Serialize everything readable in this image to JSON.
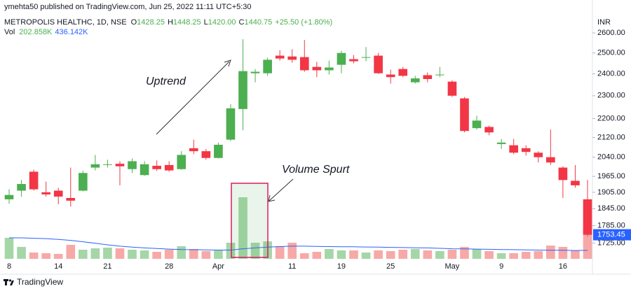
{
  "chart_data": {
    "type": "candlestick",
    "published": "ymehta50 published on TradingView.com, Jun 25, 2022 11:11 UTC+5:30",
    "symbol": "METROPOLIS HEALTHC, 1D, NSE",
    "ohlc_legend": [
      {
        "key": "O",
        "text": "1428.25"
      },
      {
        "key": "H",
        "text": "1448.25"
      },
      {
        "key": "L",
        "text": "1420.00"
      },
      {
        "key": "C",
        "text": "1440.75"
      }
    ],
    "change": "+25.50 (+1.80%)",
    "volume_label": "Vol",
    "volume_legend": [
      "202.858K",
      "436.142K"
    ],
    "currency": "INR",
    "brand": "TradingView",
    "annotations": [
      "Uptrend",
      "Volume Spurt"
    ],
    "categories": [
      "8",
      null,
      null,
      null,
      "14",
      null,
      null,
      null,
      "21",
      null,
      null,
      null,
      null,
      "28",
      null,
      null,
      null,
      "Apr",
      null,
      null,
      null,
      null,
      null,
      "11",
      null,
      null,
      null,
      "19",
      null,
      null,
      null,
      "25",
      null,
      null,
      null,
      null,
      "May",
      null,
      null,
      null,
      "9",
      null,
      null,
      null,
      null,
      "16",
      null,
      null
    ],
    "open": [
      1879,
      1911,
      1983,
      1905,
      1911,
      1884,
      1911,
      1999,
      2010,
      2014,
      1993,
      1970,
      2006,
      2009,
      1993,
      2076,
      2064,
      2037,
      2111,
      2241,
      2403,
      2403,
      2487,
      2483,
      2480,
      2433,
      2417,
      2443,
      2470,
      2477,
      2487,
      2397,
      2423,
      2361,
      2394,
      2394,
      2364,
      2288,
      2159,
      2164,
      2093,
      2088,
      2076,
      2058,
      2040,
      1999,
      1948,
      1879
    ],
    "high": [
      1916,
      1951,
      1991,
      1945,
      1922,
      1999,
      1986,
      2049,
      2030,
      2024,
      2035,
      2024,
      2027,
      2024,
      2064,
      2111,
      2073,
      2099,
      2262,
      2568,
      2423,
      2477,
      2514,
      2518,
      2564,
      2457,
      2463,
      2511,
      2490,
      2529,
      2500,
      2420,
      2433,
      2391,
      2407,
      2433,
      2370,
      2294,
      2212,
      2170,
      2114,
      2114,
      2088,
      2064,
      2153,
      2004,
      2009,
      1951
    ],
    "low": [
      1863,
      1889,
      1911,
      1889,
      1861,
      1853,
      1908,
      1988,
      1999,
      1931,
      1978,
      1967,
      1986,
      1983,
      1991,
      2052,
      2030,
      2035,
      2105,
      2150,
      2361,
      2391,
      2463,
      2453,
      2410,
      2385,
      2397,
      2403,
      2450,
      2460,
      2400,
      2355,
      2385,
      2355,
      2361,
      2385,
      2294,
      2141,
      2153,
      2129,
      2073,
      2052,
      2046,
      2019,
      2009,
      1884,
      1922,
      1748
    ],
    "close": [
      1895,
      1936,
      1916,
      1897,
      1889,
      1874,
      1978,
      2012,
      2012,
      2004,
      2024,
      2012,
      1993,
      1988,
      2049,
      2064,
      2037,
      2090,
      2244,
      2413,
      2410,
      2467,
      2473,
      2467,
      2417,
      2417,
      2430,
      2500,
      2460,
      2480,
      2403,
      2385,
      2391,
      2379,
      2376,
      2397,
      2300,
      2147,
      2191,
      2141,
      2099,
      2058,
      2061,
      2040,
      2019,
      1951,
      1931,
      1753.45
    ],
    "volume": [
      1080,
      612,
      324,
      288,
      252,
      720,
      468,
      540,
      576,
      540,
      468,
      432,
      360,
      468,
      648,
      504,
      396,
      432,
      828,
      3168,
      828,
      900,
      648,
      828,
      288,
      360,
      504,
      432,
      432,
      324,
      432,
      396,
      468,
      504,
      432,
      396,
      468,
      612,
      504,
      396,
      288,
      288,
      360,
      396,
      684,
      612,
      432,
      1548
    ],
    "volume_ma": [
      1080,
      1080,
      1060,
      1040,
      1000,
      950,
      880,
      800,
      720,
      650,
      600,
      560,
      530,
      500,
      480,
      470,
      460,
      450,
      450,
      520,
      560,
      600,
      630,
      650,
      650,
      640,
      630,
      620,
      620,
      610,
      600,
      590,
      580,
      570,
      560,
      540,
      520,
      510,
      500,
      490,
      480,
      470,
      460,
      450,
      440,
      440,
      430,
      436
    ],
    "volume_lim": [
      0,
      3600
    ],
    "last_price": 1753.45,
    "ylim": [
      1673,
      2661
    ],
    "y_scale": "log",
    "yticks": [
      {
        "value": 2600,
        "label": "2600.00"
      },
      {
        "value": 2500,
        "label": "2500.00"
      },
      {
        "value": 2400,
        "label": "2400.00"
      },
      {
        "value": 2300,
        "label": "2300.00"
      },
      {
        "value": 2200,
        "label": "2200.00"
      },
      {
        "value": 2120,
        "label": "2120.00"
      },
      {
        "value": 2040,
        "label": "2040.00"
      },
      {
        "value": 1965,
        "label": "1965.00"
      },
      {
        "value": 1905,
        "label": "1905.00"
      },
      {
        "value": 1845,
        "label": "1845.00"
      },
      {
        "value": 1785,
        "label": "1785.00"
      },
      {
        "value": 1725,
        "label": "1725.00"
      }
    ],
    "grid": false,
    "up_color": "#4caf50",
    "down_color": "#f23645",
    "up_volume_color": "#a5d6a7",
    "down_volume_color": "#f7a9a7",
    "volume_ma_color": "#2962ff",
    "last_price_color": "#2962ff"
  }
}
